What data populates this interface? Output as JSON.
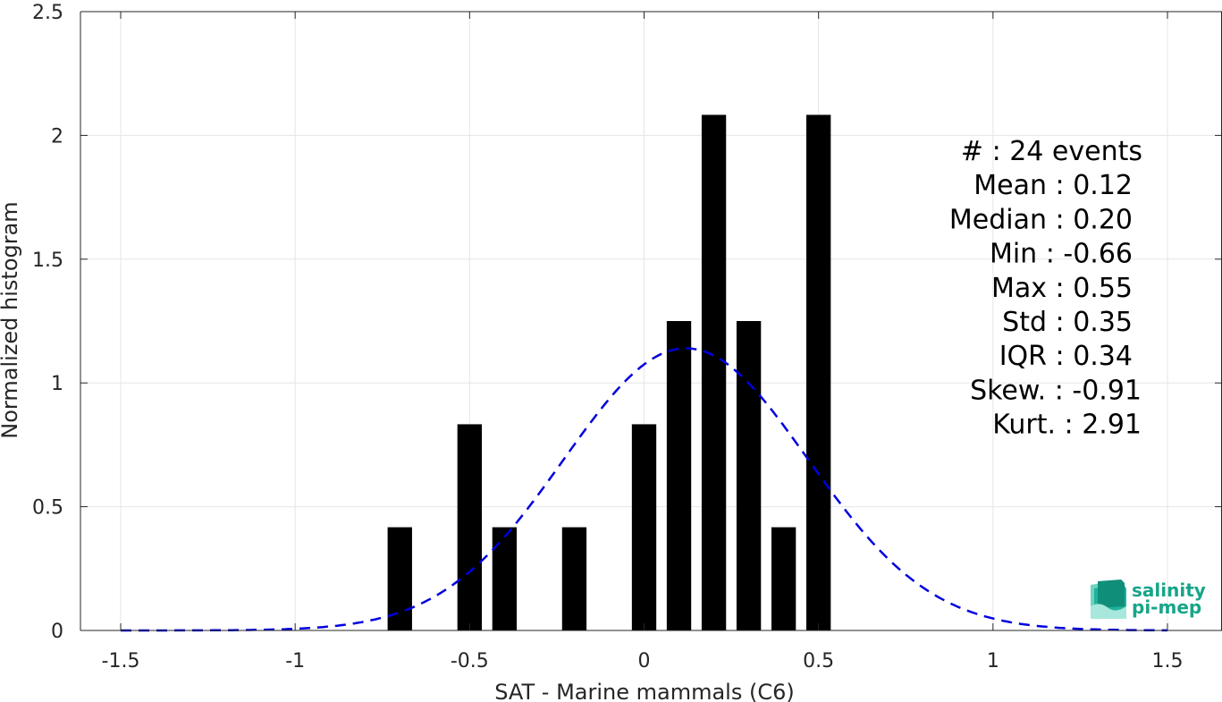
{
  "chart_data": {
    "type": "bar",
    "xlabel": "SAT - Marine mammals (C6)",
    "ylabel": "Normalized histogram",
    "xlim": [
      -1.5,
      1.5
    ],
    "ylim": [
      0,
      2.5
    ],
    "xticks": [
      -1.5,
      -1,
      -0.5,
      0,
      0.5,
      1,
      1.5
    ],
    "xtick_labels": [
      "-1.5",
      "-1",
      "-0.5",
      "0",
      "0.5",
      "1",
      "1.5"
    ],
    "yticks": [
      0,
      0.5,
      1,
      1.5,
      2,
      2.5
    ],
    "ytick_labels": [
      "0",
      "0.5",
      "1",
      "1.5",
      "2",
      "2.5"
    ],
    "grid": true,
    "bin_width": 0.1,
    "bar_width": 0.07,
    "bar_color": "#000000",
    "bars": [
      {
        "x": -0.7,
        "value": 0.417
      },
      {
        "x": -0.5,
        "value": 0.833
      },
      {
        "x": -0.4,
        "value": 0.417
      },
      {
        "x": -0.2,
        "value": 0.417
      },
      {
        "x": 0.0,
        "value": 0.833
      },
      {
        "x": 0.1,
        "value": 1.25
      },
      {
        "x": 0.2,
        "value": 2.083
      },
      {
        "x": 0.3,
        "value": 1.25
      },
      {
        "x": 0.4,
        "value": 0.417
      },
      {
        "x": 0.5,
        "value": 2.083
      }
    ],
    "fit_curve": {
      "type": "gaussian",
      "mean": 0.12,
      "std": 0.35,
      "xrange": [
        -1.5,
        1.5
      ],
      "color": "#0000e0",
      "style": "dashed"
    }
  },
  "stats": [
    "#  : 24 events",
    "Mean : 0.12",
    "Median : 0.20",
    "Min : -0.66",
    "Max : 0.55",
    "Std : 0.35",
    "IQR : 0.34",
    "Skew. : -0.91",
    "Kurt. : 2.91"
  ],
  "logo": {
    "line1": "salinity",
    "line2": "pi-mep",
    "color": "#17a589"
  }
}
